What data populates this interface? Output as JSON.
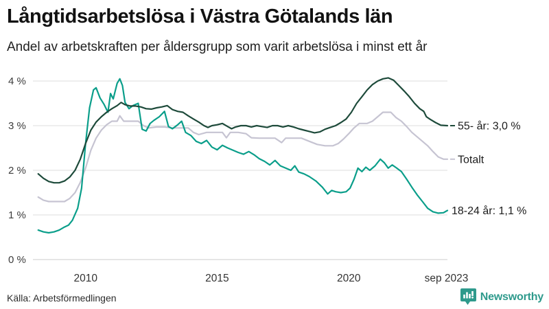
{
  "header": {
    "title": "Långtidsarbetslösa i Västra Götalands län",
    "subtitle": "Andel av arbetskraften per åldersgrupp som varit arbetslösa i minst ett år"
  },
  "footer": {
    "source": "Källa: Arbetsförmedlingen",
    "brand": "Newsworthy"
  },
  "colors": {
    "text": "#121212",
    "axis_text": "#3c3c3c",
    "brand_teal": "#2e9a8c"
  },
  "chart_data": {
    "type": "line",
    "x_range": [
      2008,
      2023.75
    ],
    "y_range": [
      0,
      4
    ],
    "grid": true,
    "grid_color": "#e3e3e3",
    "zero_line_color": "#d5d5d5",
    "legend_position": "right-end-labels",
    "y_ticks": [
      {
        "v": 4,
        "label": "4 %"
      },
      {
        "v": 3,
        "label": "3 %"
      },
      {
        "v": 2,
        "label": "2 %"
      },
      {
        "v": 1,
        "label": "1 %"
      },
      {
        "v": 0,
        "label": "0 %"
      }
    ],
    "x_ticks": [
      {
        "v": 2010,
        "label": "2010"
      },
      {
        "v": 2015,
        "label": "2015"
      },
      {
        "v": 2020,
        "label": "2020"
      },
      {
        "v": 2023.71,
        "label": "sep 2023"
      }
    ],
    "series": [
      {
        "id": "totalt",
        "name": "Totalt",
        "end_label": "Totalt",
        "leader_dash": true,
        "color": "#c6c4d2",
        "points": [
          [
            2008.2,
            1.4
          ],
          [
            2008.4,
            1.33
          ],
          [
            2008.6,
            1.3
          ],
          [
            2008.9,
            1.3
          ],
          [
            2009.2,
            1.3
          ],
          [
            2009.4,
            1.37
          ],
          [
            2009.6,
            1.5
          ],
          [
            2009.8,
            1.73
          ],
          [
            2010.0,
            2.05
          ],
          [
            2010.2,
            2.45
          ],
          [
            2010.4,
            2.72
          ],
          [
            2010.6,
            2.9
          ],
          [
            2010.8,
            3.02
          ],
          [
            2011.0,
            3.1
          ],
          [
            2011.2,
            3.1
          ],
          [
            2011.3,
            3.22
          ],
          [
            2011.45,
            3.1
          ],
          [
            2011.7,
            3.1
          ],
          [
            2012.0,
            3.1
          ],
          [
            2012.2,
            3.0
          ],
          [
            2012.4,
            2.95
          ],
          [
            2012.7,
            2.97
          ],
          [
            2013.0,
            2.97
          ],
          [
            2013.3,
            2.95
          ],
          [
            2013.6,
            2.95
          ],
          [
            2013.9,
            2.95
          ],
          [
            2014.1,
            2.85
          ],
          [
            2014.3,
            2.8
          ],
          [
            2014.6,
            2.85
          ],
          [
            2014.9,
            2.85
          ],
          [
            2015.2,
            2.85
          ],
          [
            2015.35,
            2.73
          ],
          [
            2015.5,
            2.85
          ],
          [
            2015.8,
            2.85
          ],
          [
            2016.1,
            2.82
          ],
          [
            2016.3,
            2.73
          ],
          [
            2016.6,
            2.72
          ],
          [
            2016.9,
            2.72
          ],
          [
            2017.2,
            2.72
          ],
          [
            2017.45,
            2.62
          ],
          [
            2017.6,
            2.72
          ],
          [
            2017.9,
            2.72
          ],
          [
            2018.2,
            2.72
          ],
          [
            2018.5,
            2.65
          ],
          [
            2018.8,
            2.58
          ],
          [
            2019.1,
            2.55
          ],
          [
            2019.4,
            2.55
          ],
          [
            2019.6,
            2.6
          ],
          [
            2019.8,
            2.7
          ],
          [
            2020.0,
            2.82
          ],
          [
            2020.2,
            2.95
          ],
          [
            2020.4,
            3.05
          ],
          [
            2020.7,
            3.05
          ],
          [
            2020.9,
            3.1
          ],
          [
            2021.1,
            3.2
          ],
          [
            2021.3,
            3.3
          ],
          [
            2021.6,
            3.3
          ],
          [
            2021.8,
            3.18
          ],
          [
            2022.0,
            3.1
          ],
          [
            2022.2,
            2.98
          ],
          [
            2022.4,
            2.85
          ],
          [
            2022.6,
            2.75
          ],
          [
            2022.8,
            2.65
          ],
          [
            2023.0,
            2.55
          ],
          [
            2023.2,
            2.42
          ],
          [
            2023.4,
            2.3
          ],
          [
            2023.6,
            2.25
          ],
          [
            2023.75,
            2.25
          ]
        ]
      },
      {
        "id": "18-24",
        "name": "18-24 år",
        "end_label": "18-24 år: 1,1 %",
        "leader_dash": false,
        "color": "#0a9e8a",
        "points": [
          [
            2008.2,
            0.66
          ],
          [
            2008.4,
            0.62
          ],
          [
            2008.6,
            0.6
          ],
          [
            2008.8,
            0.62
          ],
          [
            2009.0,
            0.66
          ],
          [
            2009.2,
            0.73
          ],
          [
            2009.35,
            0.77
          ],
          [
            2009.5,
            0.88
          ],
          [
            2009.7,
            1.15
          ],
          [
            2009.85,
            1.6
          ],
          [
            2010.0,
            2.6
          ],
          [
            2010.15,
            3.4
          ],
          [
            2010.3,
            3.8
          ],
          [
            2010.4,
            3.85
          ],
          [
            2010.55,
            3.62
          ],
          [
            2010.7,
            3.48
          ],
          [
            2010.85,
            3.3
          ],
          [
            2010.95,
            3.72
          ],
          [
            2011.05,
            3.6
          ],
          [
            2011.2,
            3.95
          ],
          [
            2011.3,
            4.05
          ],
          [
            2011.4,
            3.9
          ],
          [
            2011.5,
            3.52
          ],
          [
            2011.65,
            3.38
          ],
          [
            2011.8,
            3.45
          ],
          [
            2012.0,
            3.5
          ],
          [
            2012.15,
            2.92
          ],
          [
            2012.3,
            2.88
          ],
          [
            2012.45,
            3.05
          ],
          [
            2012.6,
            3.12
          ],
          [
            2012.8,
            3.2
          ],
          [
            2013.0,
            3.32
          ],
          [
            2013.15,
            2.98
          ],
          [
            2013.3,
            2.93
          ],
          [
            2013.5,
            3.02
          ],
          [
            2013.65,
            3.1
          ],
          [
            2013.8,
            2.85
          ],
          [
            2014.0,
            2.78
          ],
          [
            2014.2,
            2.65
          ],
          [
            2014.4,
            2.6
          ],
          [
            2014.6,
            2.67
          ],
          [
            2014.8,
            2.52
          ],
          [
            2015.0,
            2.46
          ],
          [
            2015.2,
            2.56
          ],
          [
            2015.4,
            2.5
          ],
          [
            2015.6,
            2.45
          ],
          [
            2015.8,
            2.4
          ],
          [
            2016.0,
            2.36
          ],
          [
            2016.2,
            2.42
          ],
          [
            2016.4,
            2.35
          ],
          [
            2016.6,
            2.26
          ],
          [
            2016.8,
            2.2
          ],
          [
            2017.0,
            2.12
          ],
          [
            2017.2,
            2.22
          ],
          [
            2017.4,
            2.1
          ],
          [
            2017.6,
            2.05
          ],
          [
            2017.8,
            2.0
          ],
          [
            2017.95,
            2.1
          ],
          [
            2018.1,
            1.96
          ],
          [
            2018.3,
            1.92
          ],
          [
            2018.5,
            1.86
          ],
          [
            2018.75,
            1.76
          ],
          [
            2019.0,
            1.62
          ],
          [
            2019.2,
            1.47
          ],
          [
            2019.35,
            1.55
          ],
          [
            2019.5,
            1.52
          ],
          [
            2019.7,
            1.5
          ],
          [
            2019.9,
            1.52
          ],
          [
            2020.05,
            1.6
          ],
          [
            2020.2,
            1.8
          ],
          [
            2020.35,
            2.05
          ],
          [
            2020.5,
            1.97
          ],
          [
            2020.65,
            2.07
          ],
          [
            2020.8,
            2.0
          ],
          [
            2021.0,
            2.1
          ],
          [
            2021.2,
            2.25
          ],
          [
            2021.35,
            2.17
          ],
          [
            2021.5,
            2.05
          ],
          [
            2021.65,
            2.12
          ],
          [
            2021.8,
            2.06
          ],
          [
            2022.0,
            1.97
          ],
          [
            2022.2,
            1.8
          ],
          [
            2022.4,
            1.62
          ],
          [
            2022.6,
            1.45
          ],
          [
            2022.8,
            1.3
          ],
          [
            2023.0,
            1.15
          ],
          [
            2023.2,
            1.07
          ],
          [
            2023.4,
            1.04
          ],
          [
            2023.6,
            1.05
          ],
          [
            2023.75,
            1.1
          ]
        ]
      },
      {
        "id": "55",
        "name": "55- år",
        "end_label": "55- år: 3,0 %",
        "leader_dash": true,
        "color": "#1d4a3a",
        "points": [
          [
            2008.2,
            1.92
          ],
          [
            2008.4,
            1.82
          ],
          [
            2008.6,
            1.75
          ],
          [
            2008.8,
            1.72
          ],
          [
            2009.0,
            1.72
          ],
          [
            2009.2,
            1.76
          ],
          [
            2009.4,
            1.85
          ],
          [
            2009.6,
            2.0
          ],
          [
            2009.8,
            2.25
          ],
          [
            2010.0,
            2.6
          ],
          [
            2010.2,
            2.9
          ],
          [
            2010.4,
            3.08
          ],
          [
            2010.6,
            3.2
          ],
          [
            2010.8,
            3.3
          ],
          [
            2011.0,
            3.38
          ],
          [
            2011.2,
            3.45
          ],
          [
            2011.35,
            3.52
          ],
          [
            2011.5,
            3.47
          ],
          [
            2011.7,
            3.44
          ],
          [
            2011.9,
            3.44
          ],
          [
            2012.1,
            3.42
          ],
          [
            2012.3,
            3.38
          ],
          [
            2012.5,
            3.37
          ],
          [
            2012.7,
            3.4
          ],
          [
            2012.9,
            3.42
          ],
          [
            2013.1,
            3.45
          ],
          [
            2013.3,
            3.36
          ],
          [
            2013.5,
            3.32
          ],
          [
            2013.7,
            3.3
          ],
          [
            2013.9,
            3.22
          ],
          [
            2014.1,
            3.15
          ],
          [
            2014.3,
            3.08
          ],
          [
            2014.5,
            3.0
          ],
          [
            2014.65,
            2.96
          ],
          [
            2014.8,
            3.0
          ],
          [
            2015.0,
            3.02
          ],
          [
            2015.2,
            3.05
          ],
          [
            2015.4,
            2.98
          ],
          [
            2015.55,
            2.93
          ],
          [
            2015.7,
            2.97
          ],
          [
            2015.9,
            3.0
          ],
          [
            2016.1,
            3.0
          ],
          [
            2016.3,
            2.97
          ],
          [
            2016.5,
            3.0
          ],
          [
            2016.7,
            2.98
          ],
          [
            2016.9,
            2.96
          ],
          [
            2017.1,
            3.0
          ],
          [
            2017.3,
            3.0
          ],
          [
            2017.5,
            2.97
          ],
          [
            2017.7,
            3.0
          ],
          [
            2017.9,
            2.97
          ],
          [
            2018.1,
            2.93
          ],
          [
            2018.3,
            2.9
          ],
          [
            2018.5,
            2.87
          ],
          [
            2018.7,
            2.84
          ],
          [
            2018.9,
            2.86
          ],
          [
            2019.1,
            2.92
          ],
          [
            2019.3,
            2.96
          ],
          [
            2019.5,
            3.0
          ],
          [
            2019.7,
            3.07
          ],
          [
            2019.9,
            3.15
          ],
          [
            2020.1,
            3.3
          ],
          [
            2020.3,
            3.5
          ],
          [
            2020.5,
            3.65
          ],
          [
            2020.7,
            3.8
          ],
          [
            2020.9,
            3.92
          ],
          [
            2021.1,
            4.0
          ],
          [
            2021.3,
            4.05
          ],
          [
            2021.5,
            4.07
          ],
          [
            2021.7,
            4.02
          ],
          [
            2021.9,
            3.9
          ],
          [
            2022.1,
            3.78
          ],
          [
            2022.3,
            3.65
          ],
          [
            2022.5,
            3.5
          ],
          [
            2022.7,
            3.38
          ],
          [
            2022.85,
            3.32
          ],
          [
            2022.95,
            3.2
          ],
          [
            2023.1,
            3.14
          ],
          [
            2023.3,
            3.07
          ],
          [
            2023.5,
            3.01
          ],
          [
            2023.75,
            3.0
          ]
        ]
      }
    ]
  }
}
